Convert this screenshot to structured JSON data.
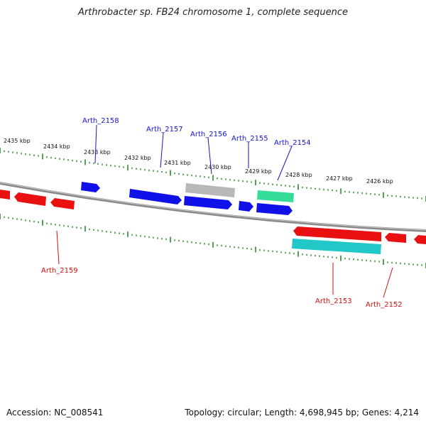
{
  "title": "Arthrobacter sp. FB24 chromosome 1, complete sequence",
  "footer": {
    "accession": "Accession: NC_008541",
    "summary": "Topology: circular; Length: 4,698,945 bp; Genes: 4,214"
  },
  "colors": {
    "backbone": "#8a8a8a",
    "ticks": "#2a8a2a",
    "forward_gene": "#1010e8",
    "reverse_gene": "#e81010",
    "pseudo_gene": "#b8b8b8",
    "rna_gene": "#33dd99",
    "cyan_gene": "#22c8c8",
    "forward_label": "#1515cc",
    "reverse_label": "#d01010"
  },
  "ruler": {
    "tick_labels": [
      "2435 kbp",
      "2434 kbp",
      "2433 kbp",
      "2432 kbp",
      "2431 kbp",
      "2430 kbp",
      "2429 kbp",
      "2428 kbp",
      "2427 kbp",
      "2426 kbp"
    ]
  },
  "genes": {
    "forward_labels": [
      "Arth_2158",
      "Arth_2157",
      "Arth_2156",
      "Arth_2155",
      "Arth_2154"
    ],
    "reverse_labels": [
      "Arth_2159",
      "Arth_2153",
      "Arth_2152"
    ]
  }
}
